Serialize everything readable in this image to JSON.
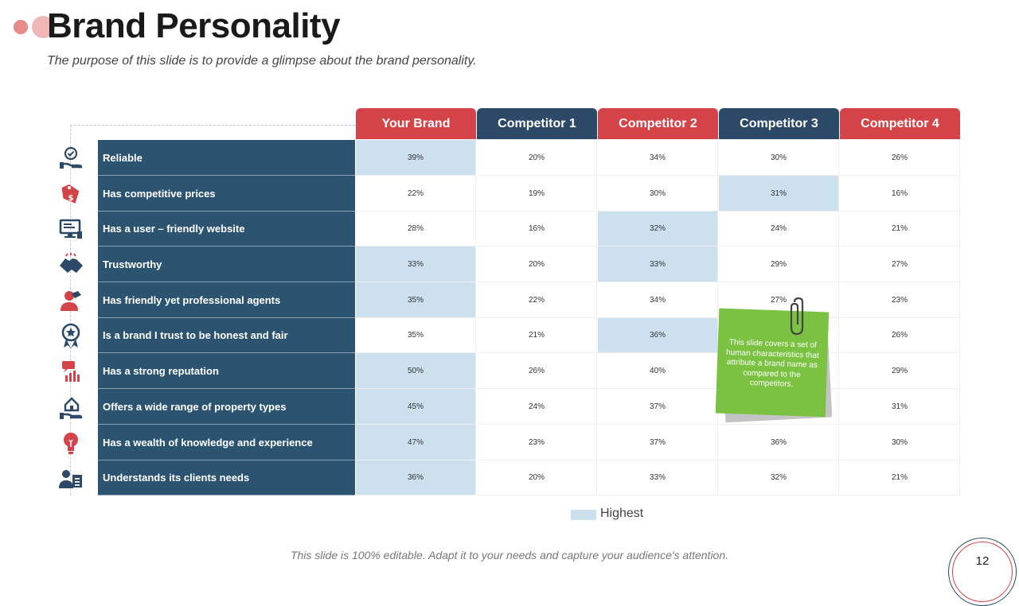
{
  "title": "Brand Personality",
  "subtitle": "The purpose of this slide is to provide a glimpse about the brand personality.",
  "columns": [
    "Your Brand",
    "Competitor  1",
    "Competitor  2",
    "Competitor  3",
    "Competitor  4"
  ],
  "rows": [
    {
      "label": "Reliable",
      "icon": "hand-check-icon",
      "values": [
        "39%",
        "20%",
        "34%",
        "30%",
        "26%"
      ],
      "highest": [
        0
      ]
    },
    {
      "label": "Has competitive  prices",
      "icon": "price-tag-icon",
      "values": [
        "22%",
        "19%",
        "30%",
        "31%",
        "16%"
      ],
      "highest": [
        3
      ]
    },
    {
      "label": "Has a user – friendly website",
      "icon": "computer-icon",
      "values": [
        "28%",
        "16%",
        "32%",
        "24%",
        "21%"
      ],
      "highest": [
        2
      ]
    },
    {
      "label": "Trustworthy",
      "icon": "handshake-icon",
      "values": [
        "33%",
        "20%",
        "33%",
        "29%",
        "27%"
      ],
      "highest": [
        0,
        2
      ]
    },
    {
      "label": "Has friendly yet professional agents",
      "icon": "agent-icon",
      "values": [
        "35%",
        "22%",
        "34%",
        "27%",
        "23%"
      ],
      "highest": [
        0
      ]
    },
    {
      "label": "Is a brand I trust to be honest  and fair",
      "icon": "badge-star-icon",
      "values": [
        "35%",
        "21%",
        "36%",
        "",
        "26%"
      ],
      "highest": [
        2
      ]
    },
    {
      "label": "Has a strong reputation",
      "icon": "chart-icon",
      "values": [
        "50%",
        "26%",
        "40%",
        "",
        "29%"
      ],
      "highest": [
        0
      ]
    },
    {
      "label": "Offers a wide range of property types",
      "icon": "house-hand-icon",
      "values": [
        "45%",
        "24%",
        "37%",
        "",
        "31%"
      ],
      "highest": [
        0
      ]
    },
    {
      "label": "Has a wealth of knowledge  and experience",
      "icon": "lightbulb-icon",
      "values": [
        "47%",
        "23%",
        "37%",
        "36%",
        "30%"
      ],
      "highest": [
        0
      ]
    },
    {
      "label": "Understands its clients needs",
      "icon": "client-icon",
      "values": [
        "36%",
        "20%",
        "33%",
        "32%",
        "21%"
      ],
      "highest": [
        0
      ]
    }
  ],
  "legend": {
    "label": "Highest"
  },
  "note": "This slide covers a set of human characteristics that attribute a brand name as compared to the competitors.",
  "footer": "This slide is 100% editable.  Adapt it to your needs and capture your audience's attention.",
  "page_number": "12",
  "colors": {
    "red": "#d44348",
    "navy": "#2c4a68",
    "row_label": "#2c5470",
    "highlight": "#cde0ee",
    "note": "#7cc242"
  }
}
